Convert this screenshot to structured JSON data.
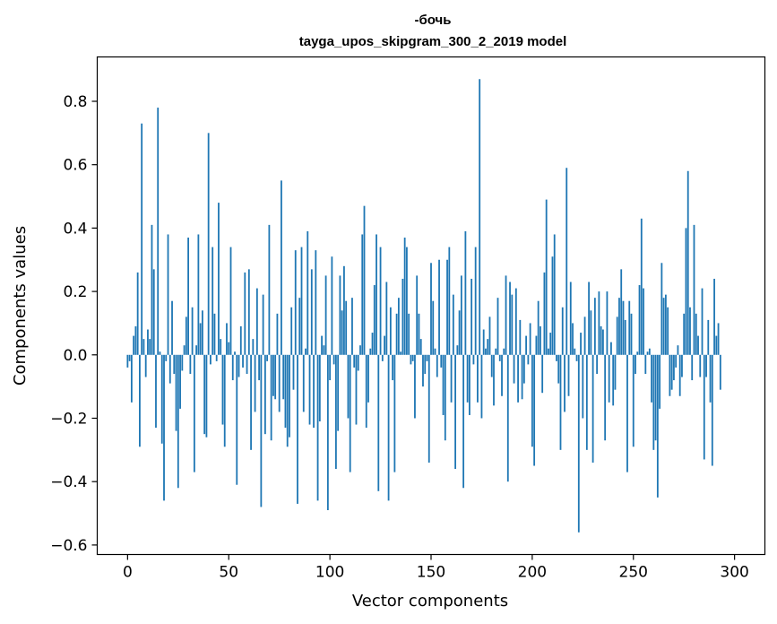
{
  "chart_data": {
    "type": "bar",
    "title": "-бочь",
    "subtitle": "tayga_upos_skipgram_300_2_2019 model",
    "xlabel": "Vector components",
    "ylabel": "Components values",
    "xlim": [
      -15,
      315
    ],
    "ylim": [
      -0.63,
      0.94
    ],
    "xticks": [
      0,
      50,
      100,
      150,
      200,
      250,
      300
    ],
    "xtick_labels": [
      "0",
      "50",
      "100",
      "150",
      "200",
      "250",
      "300"
    ],
    "yticks": [
      -0.6,
      -0.4,
      -0.2,
      0.0,
      0.2,
      0.4,
      0.6,
      0.8
    ],
    "ytick_labels": [
      "−0.6",
      "−0.4",
      "−0.2",
      "0.0",
      "0.2",
      "0.4",
      "0.6",
      "0.8"
    ],
    "grid": false,
    "bar_color": "#1f77b4",
    "series": [
      {
        "values": [
          -0.04,
          -0.02,
          -0.15,
          0.06,
          0.09,
          0.26,
          -0.29,
          0.73,
          0.05,
          -0.07,
          0.08,
          0.05,
          0.41,
          0.27,
          -0.23,
          0.78,
          0.01,
          -0.28,
          -0.46,
          -0.02,
          0.38,
          -0.09,
          0.17,
          -0.06,
          -0.24,
          -0.42,
          -0.17,
          -0.05,
          0.03,
          0.12,
          0.37,
          -0.06,
          0.15,
          -0.37,
          0.03,
          0.38,
          0.1,
          0.14,
          -0.25,
          -0.26,
          0.7,
          -0.03,
          0.34,
          0.13,
          -0.02,
          0.48,
          0.05,
          -0.22,
          -0.29,
          0.1,
          0.04,
          0.34,
          -0.08,
          0.01,
          -0.41,
          -0.07,
          0.09,
          -0.04,
          0.26,
          -0.06,
          0.27,
          -0.3,
          0.05,
          -0.18,
          0.21,
          -0.08,
          -0.48,
          0.19,
          -0.25,
          -0.02,
          0.41,
          -0.27,
          -0.13,
          -0.14,
          0.13,
          -0.18,
          0.55,
          -0.14,
          -0.23,
          -0.29,
          -0.26,
          0.15,
          -0.11,
          0.33,
          -0.47,
          0.18,
          0.34,
          -0.18,
          0.02,
          0.39,
          -0.22,
          0.27,
          -0.23,
          0.33,
          -0.46,
          -0.21,
          0.06,
          0.03,
          0.25,
          -0.49,
          -0.08,
          0.31,
          -0.03,
          -0.36,
          -0.24,
          0.25,
          0.14,
          0.28,
          0.17,
          -0.2,
          -0.37,
          0.18,
          -0.04,
          -0.22,
          -0.05,
          0.03,
          0.38,
          0.47,
          -0.23,
          -0.15,
          0.02,
          0.07,
          0.22,
          0.38,
          -0.43,
          0.34,
          -0.02,
          0.06,
          0.23,
          -0.46,
          0.15,
          -0.08,
          -0.37,
          0.13,
          0.18,
          0.01,
          0.24,
          0.37,
          0.34,
          0.13,
          -0.03,
          -0.02,
          -0.2,
          0.25,
          0.13,
          0.05,
          -0.1,
          -0.06,
          -0.02,
          -0.34,
          0.29,
          0.17,
          0.02,
          -0.07,
          0.3,
          -0.04,
          -0.19,
          -0.27,
          0.3,
          0.34,
          -0.15,
          0.19,
          -0.36,
          0.03,
          0.14,
          0.25,
          -0.42,
          0.39,
          -0.15,
          -0.19,
          0.24,
          -0.03,
          0.34,
          -0.15,
          0.87,
          -0.2,
          0.08,
          0.02,
          0.05,
          0.12,
          -0.07,
          -0.16,
          0.02,
          0.18,
          -0.02,
          -0.13,
          0.02,
          0.25,
          -0.4,
          0.23,
          0.19,
          -0.09,
          0.21,
          -0.15,
          0.11,
          -0.14,
          -0.09,
          0.06,
          -0.03,
          0.1,
          -0.29,
          -0.35,
          0.06,
          0.17,
          0.09,
          -0.12,
          0.26,
          0.49,
          0.02,
          0.07,
          0.31,
          0.38,
          -0.02,
          -0.09,
          -0.3,
          0.15,
          -0.18,
          0.59,
          -0.13,
          0.23,
          0.1,
          0.02,
          -0.02,
          -0.56,
          0.07,
          -0.2,
          0.12,
          -0.3,
          0.23,
          0.14,
          -0.34,
          0.18,
          -0.06,
          0.2,
          0.09,
          0.08,
          -0.27,
          0.2,
          -0.15,
          0.04,
          -0.16,
          -0.11,
          0.12,
          0.18,
          0.27,
          0.17,
          0.11,
          -0.37,
          0.17,
          0.13,
          -0.29,
          -0.06,
          0.01,
          0.22,
          0.43,
          0.21,
          -0.06,
          0.01,
          0.02,
          -0.15,
          -0.3,
          -0.27,
          -0.45,
          -0.17,
          0.29,
          0.18,
          0.19,
          0.15,
          -0.13,
          -0.11,
          -0.08,
          -0.04,
          0.03,
          -0.13,
          -0.07,
          0.13,
          0.4,
          0.58,
          0.15,
          -0.08,
          0.41,
          0.13,
          0.06,
          -0.07,
          0.21,
          -0.33,
          -0.07,
          0.11,
          -0.15,
          -0.35,
          0.24,
          0.06,
          0.1,
          -0.11
        ]
      }
    ]
  }
}
